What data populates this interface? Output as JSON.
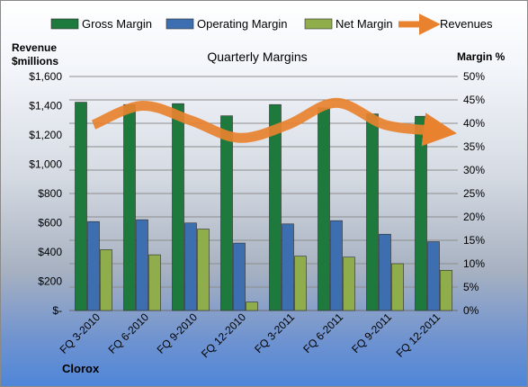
{
  "chart_data": {
    "type": "bar",
    "title": "Quarterly Margins",
    "left_axis_label_line1": "Revenue",
    "left_axis_label_line2": "$millions",
    "right_axis_label": "Margin %",
    "footer": "Clorox",
    "categories": [
      "FQ 3-2010",
      "FQ 6-2010",
      "FQ 9-2010",
      "FQ 12-2010",
      "FQ 3-2011",
      "FQ 6-2011",
      "FQ 9-2011",
      "FQ 12-2011"
    ],
    "series": [
      {
        "name": "Gross Margin",
        "axis": "right",
        "color": "#1e7a3c",
        "values": [
          44.5,
          44.0,
          44.2,
          41.6,
          44.0,
          43.3,
          42.0,
          41.5
        ]
      },
      {
        "name": "Operating Margin",
        "axis": "right",
        "color": "#3d6fb0",
        "values": [
          19.0,
          19.4,
          18.7,
          14.4,
          18.5,
          19.2,
          16.3,
          14.7
        ]
      },
      {
        "name": "Net Margin",
        "axis": "right",
        "color": "#8fae4b",
        "values": [
          13.0,
          11.9,
          17.4,
          1.8,
          11.6,
          11.4,
          10.0,
          8.6
        ]
      },
      {
        "name": "Revenues",
        "axis": "left",
        "type": "line",
        "color": "#e8822f",
        "values": [
          1270,
          1400,
          1300,
          1180,
          1270,
          1420,
          1270,
          1230
        ]
      }
    ],
    "y_left": {
      "min": 0,
      "max": 1600,
      "ticks": [
        "$-",
        "$200",
        "$400",
        "$600",
        "$800",
        "$1,000",
        "$1,200",
        "$1,400",
        "$1,600"
      ]
    },
    "y_right": {
      "min": 0,
      "max": 50,
      "ticks": [
        "0%",
        "5%",
        "10%",
        "15%",
        "20%",
        "25%",
        "30%",
        "35%",
        "40%",
        "45%",
        "50%"
      ]
    },
    "legend_position": "top",
    "grid": true
  }
}
